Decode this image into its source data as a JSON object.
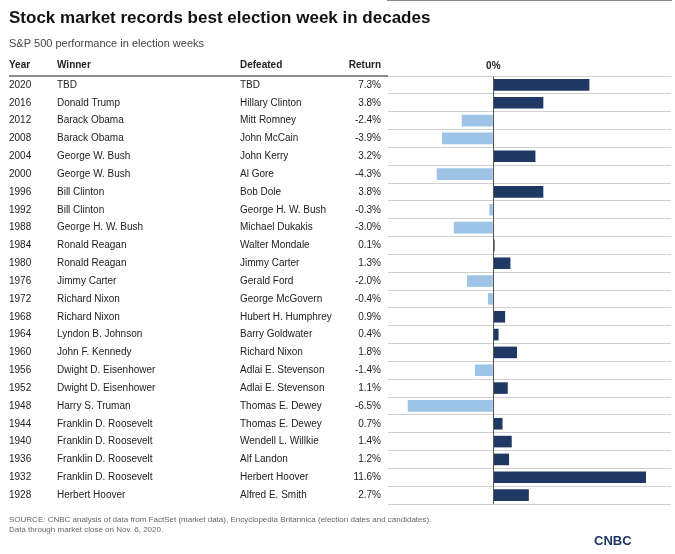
{
  "chart_data": {
    "type": "bar",
    "orientation": "horizontal",
    "title": "Stock market records best election week in decades",
    "subtitle": "S&P 500 performance in election weeks",
    "headers": [
      "Year",
      "Winner",
      "Defeated",
      "Return"
    ],
    "categories": [
      "2020",
      "2016",
      "2012",
      "2008",
      "2004",
      "2000",
      "1996",
      "1992",
      "1988",
      "1984",
      "1980",
      "1976",
      "1972",
      "1968",
      "1964",
      "1960",
      "1956",
      "1952",
      "1948",
      "1944",
      "1940",
      "1936",
      "1932",
      "1928"
    ],
    "winner": [
      "TBD",
      "Donald Trump",
      "Barack Obama",
      "Barack Obama",
      "George W. Bush",
      "George W. Bush",
      "Bill Clinton",
      "Bill Clinton",
      "George H. W. Bush",
      "Ronald Reagan",
      "Ronald Reagan",
      "Jimmy Carter",
      "Richard Nixon",
      "Richard Nixon",
      "Lyndon B. Johnson",
      "John F. Kennedy",
      "Dwight D. Eisenhower",
      "Dwight D. Eisenhower",
      "Harry S. Truman",
      "Franklin D. Roosevelt",
      "Franklin D. Roosevelt",
      "Franklin D. Roosevelt",
      "Franklin D. Roosevelt",
      "Herbert Hoover"
    ],
    "defeated": [
      "TBD",
      "Hillary Clinton",
      "Mitt Romney",
      "John McCain",
      "John Kerry",
      "Al Gore",
      "Bob Dole",
      "George H. W. Bush",
      "Michael Dukakis",
      "Walter Mondale",
      "Jimmy Carter",
      "Gerald Ford",
      "George McGovern",
      "Hubert H. Humphrey",
      "Barry Goldwater",
      "Richard Nixon",
      "Adlai E. Stevenson",
      "Adlai E. Stevenson",
      "Thomas E. Dewey",
      "Thomas E. Dewey",
      "Wendell L. Willkie",
      "Alf Landon",
      "Herbert Hoover",
      "Alfred E. Smith"
    ],
    "values": [
      7.3,
      3.8,
      -2.4,
      -3.9,
      3.2,
      -4.3,
      3.8,
      -0.3,
      -3.0,
      0.1,
      1.3,
      -2.0,
      -0.4,
      0.9,
      0.4,
      1.8,
      -1.4,
      1.1,
      -6.5,
      0.7,
      1.4,
      1.2,
      11.6,
      2.7
    ],
    "value_labels": [
      "7.3%",
      "3.8%",
      "-2.4%",
      "-3.9%",
      "3.2%",
      "-4.3%",
      "3.8%",
      "-0.3%",
      "-3.0%",
      "0.1%",
      "1.3%",
      "-2.0%",
      "-0.4%",
      "0.9%",
      "0.4%",
      "1.8%",
      "-1.4%",
      "1.1%",
      "-6.5%",
      "0.7%",
      "1.4%",
      "1.2%",
      "11.6%",
      "2.7%"
    ],
    "data_labels": true,
    "colors": [
      "#1f3864",
      "#1f3864",
      "#9dc3e6",
      "#9dc3e6",
      "#1f3864",
      "#9dc3e6",
      "#1f3864",
      "#9dc3e6",
      "#9dc3e6",
      "#1f3864",
      "#1f3864",
      "#9dc3e6",
      "#9dc3e6",
      "#1f3864",
      "#1f3864",
      "#1f3864",
      "#9dc3e6",
      "#1f3864",
      "#9dc3e6",
      "#1f3864",
      "#1f3864",
      "#1f3864",
      "#1f3864",
      "#1f3864"
    ],
    "xlim": [
      -8.0,
      13.5
    ],
    "xticks": [
      {
        "value": 0,
        "label": "0%"
      }
    ],
    "tick_labels": "x",
    "grid": true,
    "annotations": [
      "SOURCE: CNBC analysis of data from FactSet (market data), Encyclopedia Britannica (election dates and candidates).\nData through market close on Nov. 6, 2020.",
      "CNBC"
    ]
  }
}
